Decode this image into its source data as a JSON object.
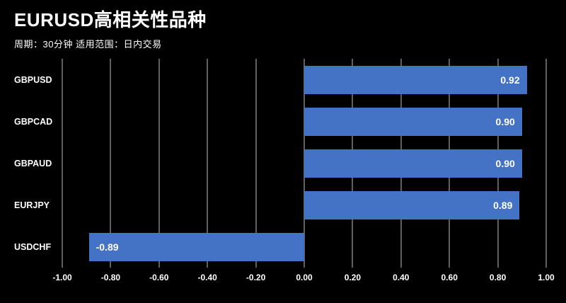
{
  "header": {
    "title": "EURUSD高相关性品种",
    "subtitle": "周期：30分钟 适用范围：日内交易"
  },
  "colors": {
    "background": "#000000",
    "bar": "#4472c4",
    "text": "#ffffff",
    "gridline": "rgba(255,255,255,0.75)"
  },
  "chart_data": {
    "type": "bar",
    "orientation": "horizontal",
    "title": "EURUSD高相关性品种",
    "subtitle": "周期：30分钟 适用范围：日内交易",
    "categories": [
      "GBPUSD",
      "GBPCAD",
      "GBPAUD",
      "EURJPY",
      "USDCHF"
    ],
    "values": [
      0.92,
      0.9,
      0.9,
      0.89,
      -0.89
    ],
    "value_labels": [
      "0.92",
      "0.90",
      "0.90",
      "0.89",
      "-0.89"
    ],
    "xlim": [
      -1,
      1
    ],
    "x_ticks": [
      "-1.00",
      "-0.80",
      "-0.60",
      "-0.40",
      "-0.20",
      "0.00",
      "0.20",
      "0.40",
      "0.60",
      "0.80",
      "1.00"
    ],
    "grid": true,
    "legend": false,
    "xlabel": "",
    "ylabel": ""
  }
}
